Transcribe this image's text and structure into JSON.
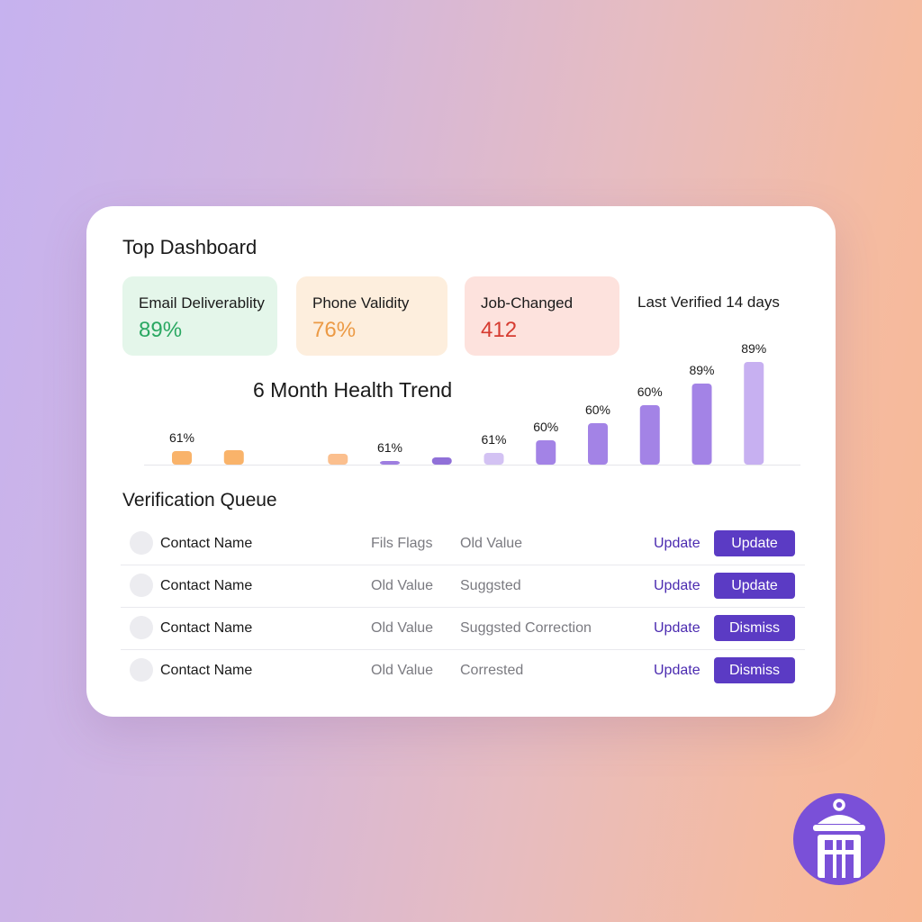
{
  "dashboard": {
    "title": "Top Dashboard",
    "last_verified": "Last Verified 14 days"
  },
  "stats": [
    {
      "label": "Email Deliverablity",
      "value": "89%",
      "color": "#2aa862"
    },
    {
      "label": "Phone Validity",
      "value": "76%",
      "color": "#ec9a45"
    },
    {
      "label": "Job-Changed",
      "value": "412",
      "color": "#d63b30"
    }
  ],
  "chart_data": {
    "type": "bar",
    "title": "6 Month Health Trend",
    "values": [
      61,
      61,
      null,
      61,
      61,
      61,
      61,
      60,
      60,
      60,
      89,
      89
    ],
    "data_labels": [
      "61%",
      "",
      "",
      "",
      "61%",
      "",
      "61%",
      "60%",
      "60%",
      "60%",
      "89%",
      "89%"
    ],
    "colors": [
      "#f9b36a",
      "#f9b36a",
      "",
      "#fbbf8e",
      "#9e7ee0",
      "#9070d8",
      "#d3c2f3",
      "#a383e6",
      "#a383e6",
      "#a383e6",
      "#a383e6",
      "#c7b0f1"
    ],
    "grid": false
  },
  "queue": {
    "title": "Verification Queue",
    "rows": [
      {
        "name": "Contact Name",
        "col1": "Fils Flags",
        "col2": "Old Value",
        "link": "Update",
        "button": "Update"
      },
      {
        "name": "Contact Name",
        "col1": "Old Value",
        "col2": "Suggsted",
        "link": "Update",
        "button": "Update"
      },
      {
        "name": "Contact Name",
        "col1": "Old Value",
        "col2": "Suggsted Correction",
        "link": "Update",
        "button": "Dismiss"
      },
      {
        "name": "Contact Name",
        "col1": "Old Value",
        "col2": "Corrested",
        "link": "Update",
        "button": "Dismiss"
      }
    ]
  },
  "logo": {
    "icon": "lantern-tower-icon",
    "color": "#7a50d8"
  }
}
